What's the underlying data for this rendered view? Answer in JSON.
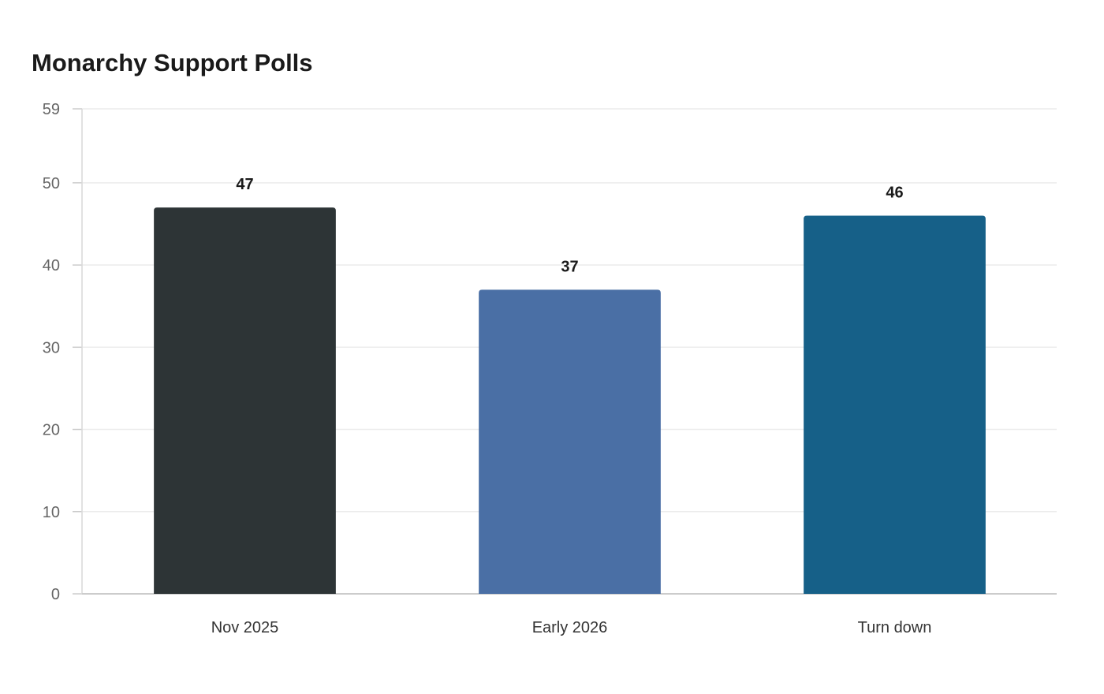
{
  "chart_data": {
    "type": "bar",
    "title": "Monarchy Support Polls",
    "categories": [
      "Nov 2025",
      "Early 2026",
      "Turn down"
    ],
    "values": [
      47,
      37,
      46
    ],
    "colors": [
      "#2d3436",
      "#4a6fa5",
      "#166088"
    ],
    "yticks": [
      0,
      10,
      20,
      30,
      40,
      50,
      59
    ],
    "ylim": [
      0,
      59
    ],
    "xlabel": "",
    "ylabel": "",
    "grid": true,
    "data_labels": true
  }
}
